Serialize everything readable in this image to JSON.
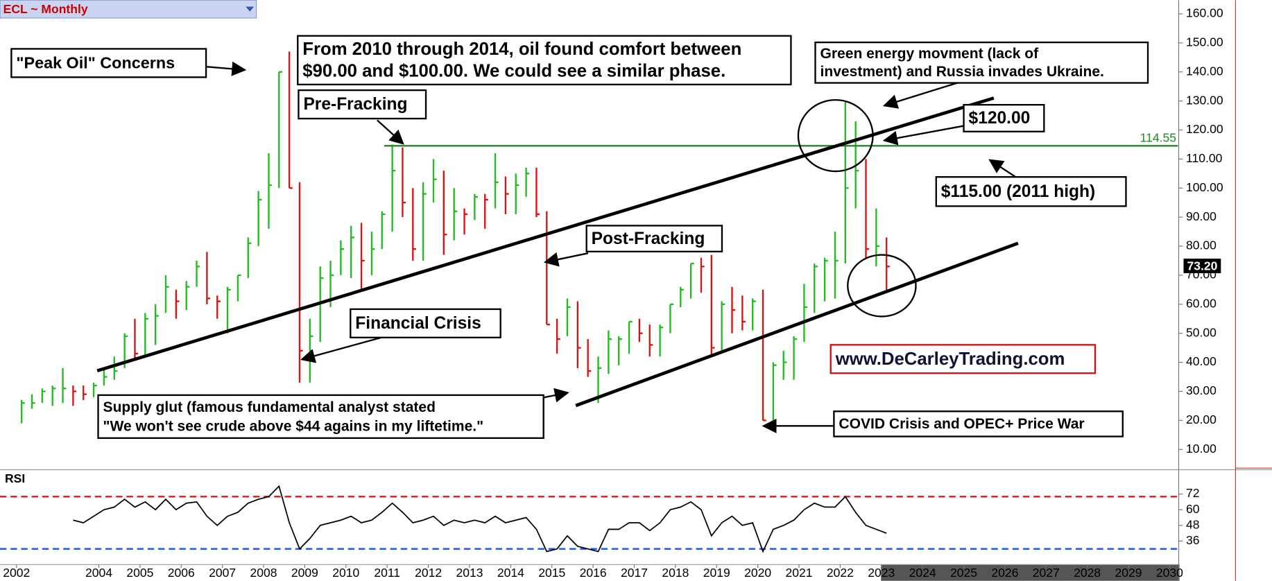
{
  "chart_data": [
    {
      "type": "ohlc",
      "header": "ECL ~ Monthly",
      "x": [
        2002.125,
        2002.375,
        2002.625,
        2002.875,
        2003.125,
        2003.375,
        2003.625,
        2003.875,
        2004.125,
        2004.375,
        2004.625,
        2004.875,
        2005.125,
        2005.375,
        2005.625,
        2005.875,
        2006.125,
        2006.375,
        2006.625,
        2006.875,
        2007.125,
        2007.375,
        2007.625,
        2007.875,
        2008.125,
        2008.375,
        2008.625,
        2008.875,
        2009.125,
        2009.375,
        2009.625,
        2009.875,
        2010.125,
        2010.375,
        2010.625,
        2010.875,
        2011.125,
        2011.375,
        2011.625,
        2011.875,
        2012.125,
        2012.375,
        2012.625,
        2012.875,
        2013.125,
        2013.375,
        2013.625,
        2013.875,
        2014.125,
        2014.375,
        2014.625,
        2014.875,
        2015.125,
        2015.375,
        2015.625,
        2015.875,
        2016.125,
        2016.375,
        2016.625,
        2016.875,
        2017.125,
        2017.375,
        2017.625,
        2017.875,
        2018.125,
        2018.375,
        2018.625,
        2018.875,
        2019.125,
        2019.375,
        2019.625,
        2019.875,
        2020.125,
        2020.375,
        2020.625,
        2020.875,
        2021.125,
        2021.375,
        2021.625,
        2021.875,
        2022.125,
        2022.375,
        2022.625,
        2022.875,
        2023.125
      ],
      "low": [
        19,
        24,
        26,
        25,
        26,
        25,
        27,
        28,
        32,
        34,
        38,
        41,
        42,
        46,
        57,
        55,
        58,
        66,
        60,
        55,
        50,
        61,
        69,
        80,
        86,
        100,
        100,
        33,
        33,
        47,
        59,
        70,
        69,
        65,
        70,
        79,
        85,
        90,
        75,
        75,
        95,
        77,
        82,
        84,
        89,
        86,
        93,
        91,
        91,
        97,
        90,
        53,
        43,
        49,
        38,
        35,
        26,
        36,
        39,
        43,
        47,
        42,
        42,
        50,
        59,
        62,
        64,
        42,
        44,
        50,
        51,
        51,
        20,
        17,
        34,
        34,
        47,
        57,
        61,
        62,
        74,
        93,
        76,
        73,
        64
      ],
      "high": [
        27,
        29,
        31,
        32,
        38,
        32,
        32,
        33,
        38,
        42,
        50,
        55,
        57,
        60,
        70,
        65,
        68,
        75,
        78,
        63,
        66,
        70,
        83,
        99,
        112,
        140,
        147,
        102,
        55,
        73,
        75,
        82,
        87,
        88,
        85,
        92,
        115,
        114,
        100,
        102,
        110,
        106,
        100,
        93,
        98,
        98,
        112,
        104,
        105,
        107,
        107,
        92,
        55,
        62,
        61,
        48,
        42,
        51,
        49,
        54,
        55,
        53,
        53,
        60,
        66,
        74,
        76,
        77,
        61,
        66,
        63,
        62,
        65,
        40,
        44,
        49,
        67,
        74,
        76,
        85,
        130,
        123,
        110,
        93,
        83
      ],
      "close": [
        26,
        26,
        30,
        31,
        31,
        30,
        29,
        32,
        35,
        37,
        49,
        43,
        55,
        56,
        66,
        61,
        66,
        73,
        62,
        61,
        65,
        70,
        81,
        96,
        101,
        140,
        100,
        44,
        49,
        69,
        70,
        79,
        83,
        75,
        79,
        91,
        106,
        95,
        79,
        98,
        103,
        84,
        92,
        91,
        97,
        96,
        102,
        98,
        101,
        105,
        91,
        53,
        48,
        59,
        45,
        37,
        38,
        48,
        48,
        54,
        50,
        46,
        52,
        60,
        65,
        74,
        73,
        45,
        60,
        58,
        54,
        61,
        20,
        39,
        40,
        48,
        59,
        73,
        75,
        75,
        100,
        106,
        79,
        80,
        73
      ],
      "up_color": "#22bb22",
      "down_color": "#dd1111",
      "xlim": [
        2001.6,
        2030.2
      ],
      "xticks": [
        2002,
        2004,
        2005,
        2006,
        2007,
        2008,
        2009,
        2010,
        2011,
        2012,
        2013,
        2014,
        2015,
        2016,
        2017,
        2018,
        2019,
        2020,
        2021,
        2022,
        2023,
        2024,
        2025,
        2026,
        2027,
        2028,
        2029,
        2030
      ],
      "ylim": [
        3.3,
        164.7
      ],
      "yticks": [
        {
          "value": 10,
          "label": "10.00"
        },
        {
          "value": 20,
          "label": "20.00"
        },
        {
          "value": 30,
          "label": "30.00"
        },
        {
          "value": 40,
          "label": "40.00"
        },
        {
          "value": 50,
          "label": "50.00"
        },
        {
          "value": 60,
          "label": "60.00"
        },
        {
          "value": 70,
          "label": "70.00"
        },
        {
          "value": 80,
          "label": "80.00"
        },
        {
          "value": 90,
          "label": "90.00"
        },
        {
          "value": 100,
          "label": "100.00"
        },
        {
          "value": 110,
          "label": "110.00"
        },
        {
          "value": 120,
          "label": "120.00"
        },
        {
          "value": 130,
          "label": "130.00"
        },
        {
          "value": 140,
          "label": "140.00"
        },
        {
          "value": 150,
          "label": "150.00"
        },
        {
          "value": 160,
          "label": "160.00"
        }
      ],
      "hline": {
        "value": 114.55,
        "color": "#228822"
      },
      "last": {
        "value": 73.2,
        "label": "73.20"
      },
      "trendlines": [
        {
          "x": [
            2003.96,
            2025.73
          ],
          "y": [
            37.1,
            131
          ]
        },
        {
          "x": [
            2015.58,
            2026.32
          ],
          "y": [
            25.1,
            81
          ]
        }
      ],
      "annotations": [
        {
          "lines": [
            "\"Peak Oil\" Concerns"
          ]
        },
        {
          "lines": [
            "From 2010 through 2014, oil found comfort between",
            "$90.00 and $100.00. We could see a similar phase."
          ]
        },
        {
          "lines": [
            "Pre-Fracking"
          ]
        },
        {
          "lines": [
            "Green energy movment (lack of",
            "investment) and Russia invades Ukraine."
          ]
        },
        {
          "lines": [
            "$120.00"
          ]
        },
        {
          "lines": [
            "$115.00 (2011 high)"
          ]
        },
        {
          "lines": [
            "Post-Fracking"
          ]
        },
        {
          "lines": [
            "Financial Crisis"
          ]
        },
        {
          "lines": [
            "Supply glut (famous fundamental analyst stated",
            "\"We won't see crude above $44 agains in my liftetime.\""
          ]
        },
        {
          "lines": [
            "COVID Crisis and OPEC+ Price War"
          ]
        },
        {
          "lines": [
            "www.DeCarleyTrading.com"
          ]
        }
      ]
    },
    {
      "type": "line",
      "title": "RSI",
      "x": [
        2002.125,
        2002.375,
        2002.625,
        2002.875,
        2003.125,
        2003.375,
        2003.625,
        2003.875,
        2004.125,
        2004.375,
        2004.625,
        2004.875,
        2005.125,
        2005.375,
        2005.625,
        2005.875,
        2006.125,
        2006.375,
        2006.625,
        2006.875,
        2007.125,
        2007.375,
        2007.625,
        2007.875,
        2008.125,
        2008.375,
        2008.625,
        2008.875,
        2009.125,
        2009.375,
        2009.625,
        2009.875,
        2010.125,
        2010.375,
        2010.625,
        2010.875,
        2011.125,
        2011.375,
        2011.625,
        2011.875,
        2012.125,
        2012.375,
        2012.625,
        2012.875,
        2013.125,
        2013.375,
        2013.625,
        2013.875,
        2014.125,
        2014.375,
        2014.625,
        2014.875,
        2015.125,
        2015.375,
        2015.625,
        2015.875,
        2016.125,
        2016.375,
        2016.625,
        2016.875,
        2017.125,
        2017.375,
        2017.625,
        2017.875,
        2018.125,
        2018.375,
        2018.625,
        2018.875,
        2019.125,
        2019.375,
        2019.625,
        2019.875,
        2020.125,
        2020.375,
        2020.625,
        2020.875,
        2021.125,
        2021.375,
        2021.625,
        2021.875,
        2022.125,
        2022.375,
        2022.625,
        2022.875,
        2023.125
      ],
      "values": [
        null,
        null,
        null,
        null,
        null,
        52,
        50,
        55,
        60,
        62,
        68,
        62,
        66,
        60,
        68,
        60,
        65,
        66,
        55,
        48,
        55,
        58,
        65,
        68,
        70,
        78,
        50,
        30,
        38,
        48,
        50,
        52,
        55,
        50,
        52,
        58,
        65,
        58,
        50,
        52,
        55,
        48,
        52,
        50,
        52,
        50,
        55,
        50,
        52,
        54,
        45,
        28,
        30,
        40,
        32,
        30,
        28,
        45,
        45,
        50,
        50,
        44,
        50,
        60,
        62,
        66,
        60,
        40,
        50,
        55,
        48,
        50,
        28,
        45,
        48,
        52,
        60,
        65,
        62,
        62,
        70,
        58,
        48,
        45,
        42
      ],
      "color": "#000000",
      "xlim": [
        2001.6,
        2030.2
      ],
      "ylim": [
        18.6,
        90
      ],
      "yticks": [
        36,
        48,
        60,
        72
      ],
      "levels": [
        {
          "value": 70,
          "color": "#ee1111"
        },
        {
          "value": 30,
          "color": "#1155ee"
        }
      ]
    }
  ]
}
